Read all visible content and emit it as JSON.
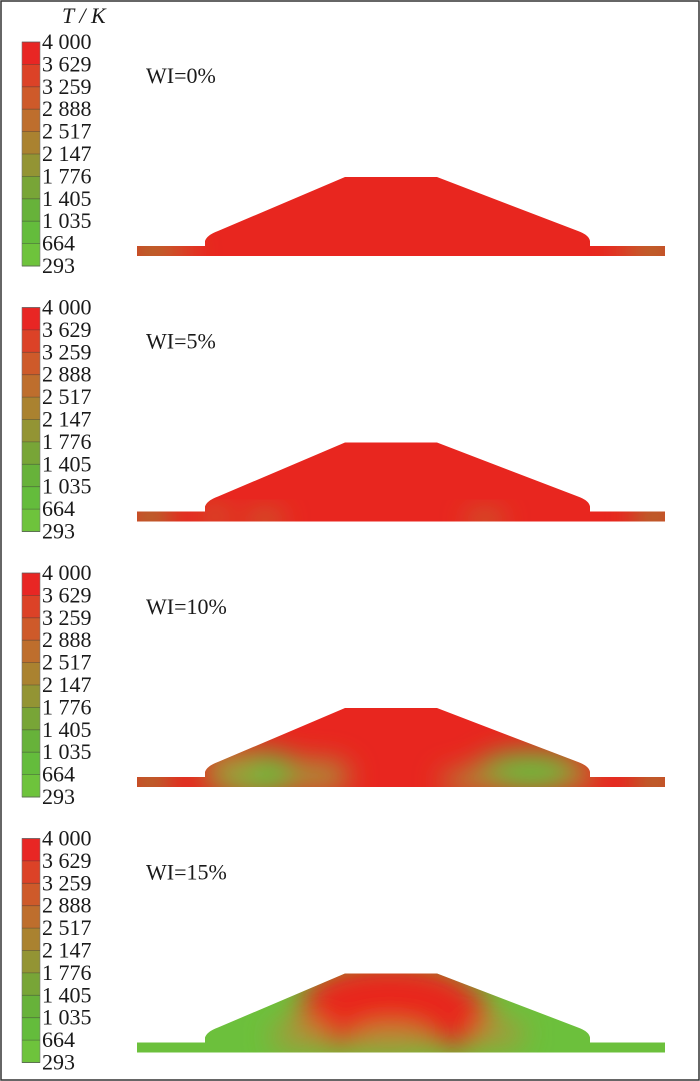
{
  "colorbar_title": "T / K",
  "panels": [
    {
      "label": "WI=0%",
      "colorbar_labels": [
        "4 000",
        "3 629",
        "3 259",
        "2 888",
        "2 517",
        "2 147",
        "1 776",
        "1 405",
        "1 035",
        "664",
        "293"
      ]
    },
    {
      "label": "WI=5%",
      "colorbar_labels": [
        "4 000",
        "3 629",
        "3 259",
        "2 888",
        "2 517",
        "2 147",
        "1 776",
        "1 405",
        "1 035",
        "664",
        "293"
      ]
    },
    {
      "label": "WI=10%",
      "colorbar_labels": [
        "4 000",
        "3 629",
        "3 259",
        "2 888",
        "2 517",
        "2 147",
        "1 776",
        "1 405",
        "1 035",
        "664",
        "293"
      ]
    },
    {
      "label": "WI=15%",
      "colorbar_labels": [
        "4 000",
        "3 629",
        "3 259",
        "2 888",
        "2 517",
        "2 147",
        "1 776",
        "1 405",
        "1 035",
        "664",
        "293"
      ]
    }
  ]
}
